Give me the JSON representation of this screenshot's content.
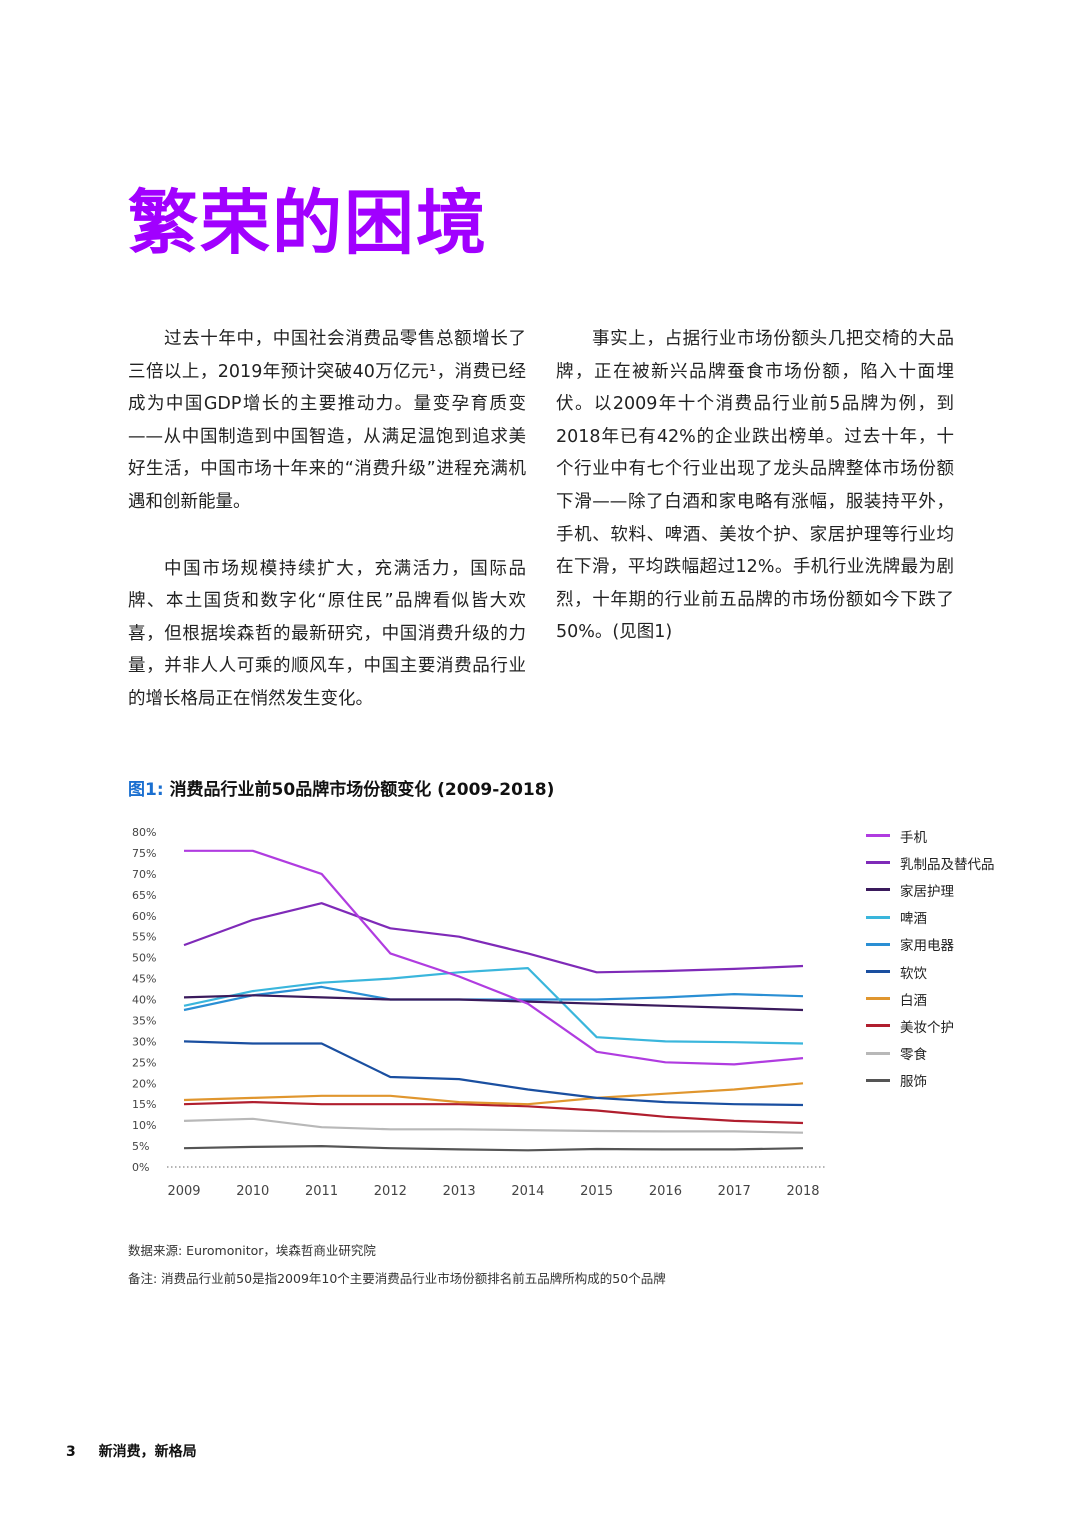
{
  "page": {
    "title": "繁荣的困境",
    "paragraphs_left": [
      "过去十年中，中国社会消费品零售总额增长了三倍以上，2019年预计突破40万亿元¹，消费已经成为中国GDP增长的主要推动力。量变孕育质变——从中国制造到中国智造，从满足温饱到追求美好生活，中国市场十年来的“消费升级”进程充满机遇和创新能量。",
      "中国市场规模持续扩大，充满活力，国际品牌、本土国货和数字化“原住民”品牌看似皆大欢喜，但根据埃森哲的最新研究，中国消费升级的力量，并非人人可乘的顺风车，中国主要消费品行业的增长格局正在悄然发生变化。"
    ],
    "paragraphs_right": [
      "事实上，占据行业市场份额头几把交椅的大品牌，正在被新兴品牌蚕食市场份额，陷入十面埋伏。以2009年十个消费品行业前5品牌为例，到2018年已有42%的企业跌出榜单。过去十年，十个行业中有七个行业出现了龙头品牌整体市场份额下滑——除了白酒和家电略有涨幅，服装持平外，手机、软料、啤酒、美妆个护、家居护理等行业均在下滑，平均跌幅超过12%。手机行业洗牌最为剧烈，十年期的行业前五品牌的市场份额如今下跌了50%。(见图1)"
    ],
    "figure": {
      "label": "图1:",
      "caption": "消费品行业前50品牌市场份额变化 (2009-2018)"
    },
    "source_note": "数据来源: Euromonitor，埃森哲商业研究院",
    "remark_note": "备注: 消费品行业前50是指2009年10个主要消费品行业市场份额排名前五品牌所构成的50个品牌",
    "footer": {
      "page_number": "3",
      "text": "新消费，新格局"
    }
  },
  "chart_data": {
    "type": "line",
    "title": "消费品行业前50品牌市场份额变化 (2009-2018)",
    "xlabel": "",
    "ylabel": "",
    "ylim": [
      0,
      80
    ],
    "yticks": [
      "0%",
      "5%",
      "10%",
      "15%",
      "20%",
      "25%",
      "30%",
      "35%",
      "40%",
      "45%",
      "50%",
      "55%",
      "60%",
      "65%",
      "70%",
      "75%",
      "80%"
    ],
    "x": [
      "2009",
      "2010",
      "2011",
      "2012",
      "2013",
      "2014",
      "2015",
      "2016",
      "2017",
      "2018"
    ],
    "legend_position": "right",
    "series": [
      {
        "name": "手机",
        "color": "#b03ce0",
        "values": [
          75.5,
          75.5,
          70,
          51,
          45.5,
          39,
          27.5,
          25,
          24.5,
          26
        ]
      },
      {
        "name": "乳制品及替代品",
        "color": "#7f2ab8",
        "values": [
          53,
          59,
          63,
          57,
          55,
          51,
          46.5,
          46.8,
          47.3,
          48
        ]
      },
      {
        "name": "家居护理",
        "color": "#3a1a5c",
        "values": [
          40.5,
          41,
          40.5,
          40,
          40,
          39.5,
          39,
          38.5,
          38,
          37.5
        ]
      },
      {
        "name": "啤酒",
        "color": "#3ab6dc",
        "values": [
          38.5,
          42,
          44,
          45,
          46.5,
          47.5,
          31,
          30,
          29.8,
          29.5
        ]
      },
      {
        "name": "家用电器",
        "color": "#2a8fd4",
        "values": [
          37.5,
          41,
          43,
          40,
          40,
          40,
          40,
          40.5,
          41.3,
          40.8
        ]
      },
      {
        "name": "软饮",
        "color": "#1a4fa0",
        "values": [
          30,
          29.5,
          29.5,
          21.5,
          21,
          18.5,
          16.5,
          15.5,
          15,
          14.8
        ]
      },
      {
        "name": "白酒",
        "color": "#e0962e",
        "values": [
          16,
          16.5,
          17,
          17,
          15.5,
          15,
          16.5,
          17.5,
          18.5,
          20
        ]
      },
      {
        "name": "美妆个护",
        "color": "#b01e2e",
        "values": [
          15,
          15.5,
          15,
          15,
          15,
          14.5,
          13.5,
          12,
          11,
          10.5
        ]
      },
      {
        "name": "零食",
        "color": "#b8b8b8",
        "values": [
          11,
          11.5,
          9.5,
          9,
          9,
          8.8,
          8.6,
          8.5,
          8.5,
          8.2
        ]
      },
      {
        "name": "服饰",
        "color": "#555555",
        "values": [
          4.5,
          4.8,
          5,
          4.5,
          4.2,
          4,
          4.3,
          4.2,
          4.2,
          4.5
        ]
      }
    ]
  }
}
